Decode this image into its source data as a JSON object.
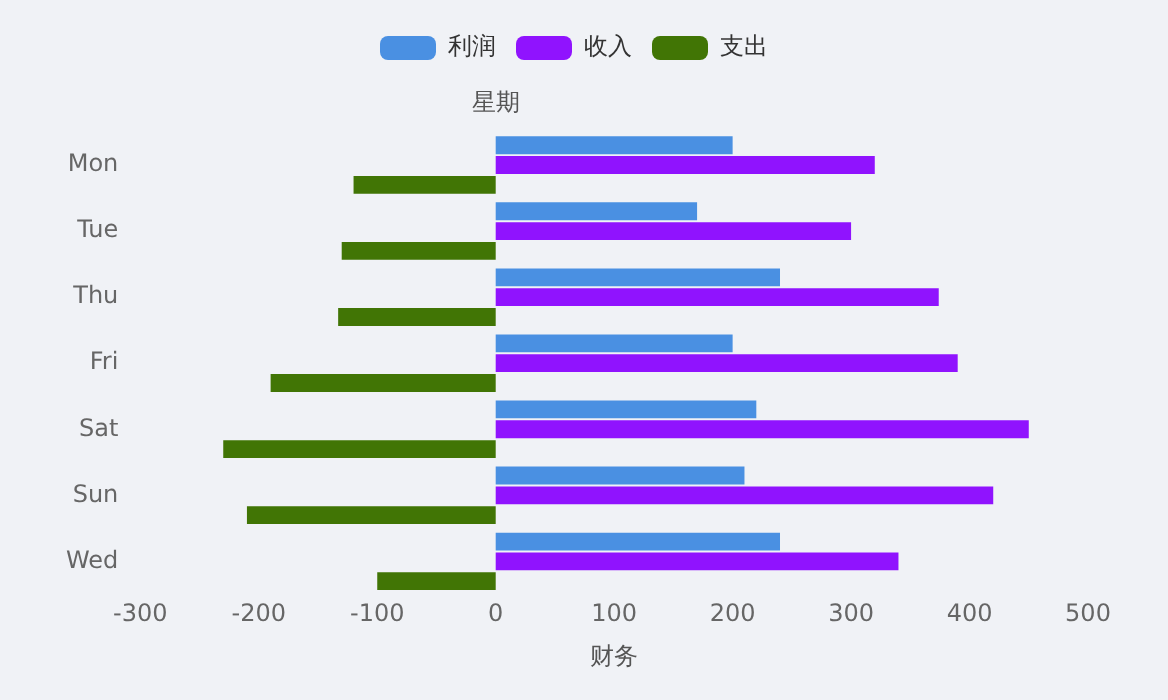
{
  "chart_data": {
    "type": "bar",
    "orientation": "horizontal",
    "xlabel": "财务",
    "ylabel": "星期",
    "categories": [
      "Mon",
      "Tue",
      "Thu",
      "Fri",
      "Sat",
      "Sun",
      "Wed"
    ],
    "series": [
      {
        "name": "利润",
        "color": "#4a90e2",
        "values": [
          200,
          170,
          240,
          200,
          220,
          210,
          240
        ]
      },
      {
        "name": "收入",
        "color": "#9013fe",
        "values": [
          320,
          300,
          374,
          390,
          450,
          420,
          340
        ]
      },
      {
        "name": "支出",
        "color": "#417505",
        "values": [
          -120,
          -130,
          -133,
          -190,
          -230,
          -210,
          -100
        ]
      }
    ],
    "xlim": [
      -300,
      500
    ],
    "xticks": [
      -300,
      -200,
      -100,
      0,
      100,
      200,
      300,
      400,
      500
    ],
    "grid": false,
    "legend": "top"
  }
}
